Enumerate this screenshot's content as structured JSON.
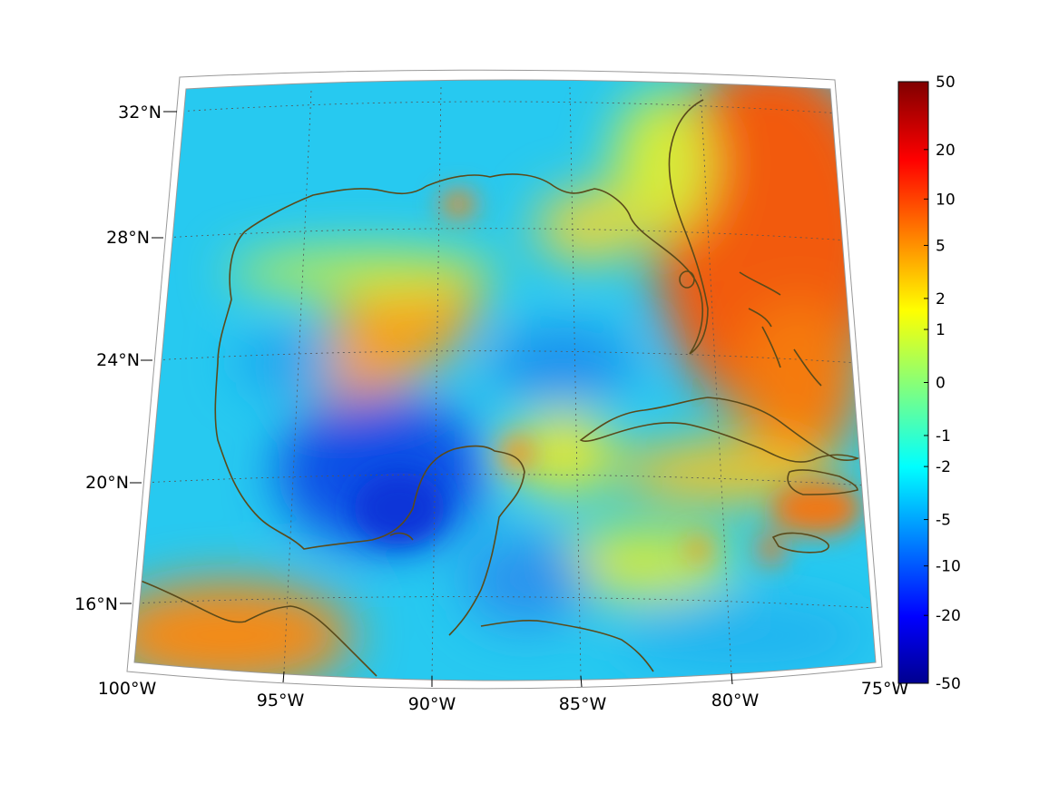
{
  "map": {
    "projection": "conic",
    "lon_range": [
      -100,
      -75
    ],
    "lat_range": [
      14,
      33
    ],
    "lon_ticks": [
      {
        "value": -100,
        "label": "100°W"
      },
      {
        "value": -95,
        "label": "95°W"
      },
      {
        "value": -90,
        "label": "90°W"
      },
      {
        "value": -85,
        "label": "85°W"
      },
      {
        "value": -80,
        "label": "80°W"
      },
      {
        "value": -75,
        "label": "75°W"
      }
    ],
    "lat_ticks": [
      {
        "value": 16,
        "label": "16°N"
      },
      {
        "value": 20,
        "label": "20°N"
      },
      {
        "value": 24,
        "label": "24°N"
      },
      {
        "value": 28,
        "label": "28°N"
      },
      {
        "value": 32,
        "label": "32°N"
      }
    ],
    "grid": true,
    "coastline_color": "#5a4a1a",
    "colormap": "jet"
  },
  "colorbar": {
    "position": "right",
    "scale": "symmetric-log",
    "range": [
      -50,
      50
    ],
    "tick_labels": [
      "50",
      "20",
      "10",
      "5",
      "2",
      "1",
      "0",
      "-1",
      "-2",
      "-5",
      "-10",
      "-20",
      "-50"
    ]
  }
}
